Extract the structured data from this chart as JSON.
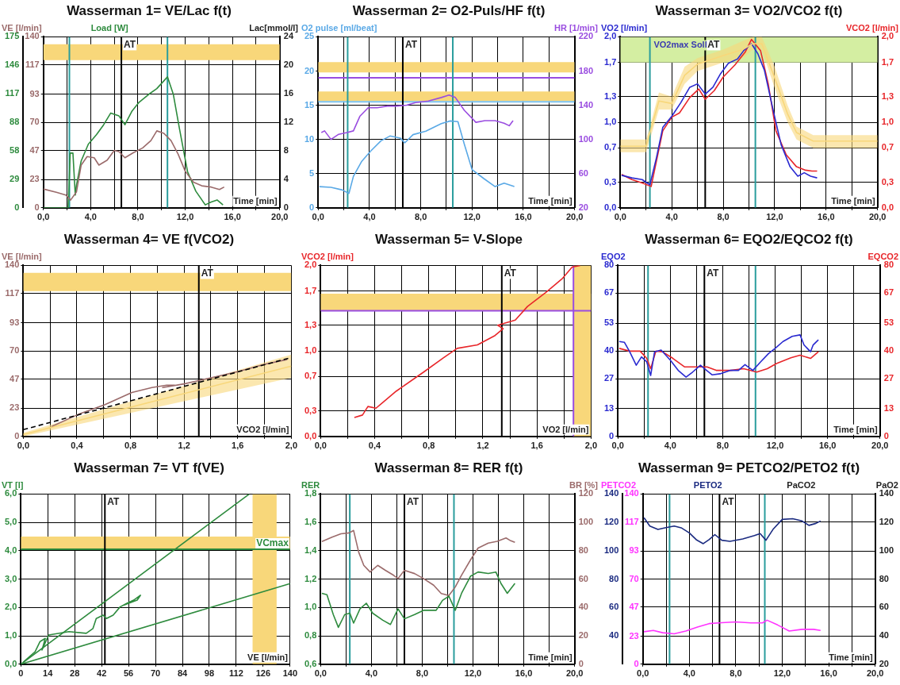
{
  "chart_data": [
    {
      "type": "line",
      "title": "Wasserman 1= VE/Lac f(t)",
      "xlabel": "Time [min]",
      "ylabel": "VE [l/min]",
      "y2label": "Lac[mmol/l]",
      "y3label": "Load [W]",
      "grid": true,
      "xlim": [
        0,
        20
      ],
      "xticks": [
        {
          "value": 0,
          "label": "0,0"
        },
        {
          "value": 2,
          "label": null
        },
        {
          "value": 4,
          "label": "4,0"
        },
        {
          "value": 6,
          "label": null
        },
        {
          "value": 8,
          "label": "8,0"
        },
        {
          "value": 10,
          "label": null
        },
        {
          "value": 12,
          "label": "12,0"
        },
        {
          "value": 14,
          "label": null
        },
        {
          "value": 16,
          "label": "16,0"
        },
        {
          "value": 18,
          "label": null
        },
        {
          "value": 20,
          "label": "20,0"
        }
      ],
      "ylim": [
        0,
        140
      ],
      "yticks": [
        0,
        23,
        47,
        70,
        93,
        117,
        140
      ],
      "y2lim": [
        0,
        24
      ],
      "y2ticks": [
        0,
        4,
        8,
        12,
        16,
        20,
        24
      ],
      "y3lim": [
        0,
        175
      ],
      "y3ticks": [
        0,
        29,
        58,
        88,
        117,
        146,
        175
      ],
      "series": [
        {
          "color": "#9b6b6b",
          "x": [
            0,
            1.1,
            1.9,
            2.3,
            2.8,
            3.2,
            3.7,
            4.3,
            4.7,
            5.4,
            6.0,
            6.4,
            6.9,
            7.6,
            8.4,
            9.1,
            9.6,
            10.2,
            10.8,
            11.4,
            12.0,
            12.7,
            13.4,
            14.2,
            14.9,
            15.3
          ],
          "values": [
            15.4,
            12.7,
            10.5,
            6.3,
            13,
            35,
            42,
            41,
            35,
            39,
            47,
            46,
            41,
            45,
            49,
            55,
            63,
            61,
            55,
            44,
            30,
            21,
            18,
            17,
            15,
            17
          ]
        },
        {
          "color": "#2e8b3e",
          "axis": "y3",
          "x": [
            0,
            1.3,
            2.1,
            2.27,
            2.5,
            2.7,
            2.8,
            3.2,
            3.8,
            4.5,
            5.1,
            5.7,
            6.4,
            6.9,
            7.5,
            8.1,
            8.9,
            9.6,
            10.5,
            11.0,
            11.5,
            12.2,
            12.9,
            13.7,
            14.2,
            14.7,
            15.2
          ],
          "values": [
            0,
            0,
            0,
            56,
            56,
            13,
            23,
            48,
            65,
            75,
            85,
            97,
            94,
            85,
            99,
            108,
            116,
            122,
            134,
            116,
            82,
            37,
            17,
            3,
            6,
            8,
            3
          ]
        }
      ],
      "bands": [
        {
          "axis": "y",
          "from": 121,
          "to": 134,
          "color": "#f8d77a"
        }
      ],
      "ref_lines": [
        {
          "axis": "x",
          "value": 2.2,
          "color": "#2a9d9d"
        },
        {
          "axis": "x",
          "value": 10.5,
          "color": "#2a9d9d"
        },
        {
          "axis": "x",
          "value": 6.6,
          "color": "#000000",
          "label": "AT"
        }
      ]
    },
    {
      "type": "line",
      "title": "Wasserman 2= O2-Puls/HF f(t)",
      "xlabel": "Time [min]",
      "ylabel": "O2 pulse [ml/beat]",
      "y2label": "HR [1/min]",
      "grid": true,
      "xlim": [
        0,
        20
      ],
      "xticks": [
        {
          "value": 0,
          "label": "0,0"
        },
        {
          "value": 2,
          "label": null
        },
        {
          "value": 4,
          "label": "4,0"
        },
        {
          "value": 6,
          "label": null
        },
        {
          "value": 8,
          "label": "8,0"
        },
        {
          "value": 10,
          "label": null
        },
        {
          "value": 12,
          "label": "12,0"
        },
        {
          "value": 14,
          "label": null
        },
        {
          "value": 16,
          "label": "16,0"
        },
        {
          "value": 18,
          "label": null
        },
        {
          "value": 20,
          "label": "20,0"
        }
      ],
      "ylim": [
        0,
        25
      ],
      "yticks": [
        0,
        5,
        10,
        15,
        20,
        25
      ],
      "y2lim": [
        20,
        220
      ],
      "y2ticks": [
        20,
        60,
        100,
        140,
        180,
        220
      ],
      "series": [
        {
          "color": "#5aa9e6",
          "x": [
            0.1,
            1.0,
            1.9,
            2.4,
            2.75,
            3.4,
            4.1,
            4.9,
            5.6,
            6.4,
            6.75,
            7.4,
            8.4,
            9.6,
            10.3,
            10.9,
            11.4,
            12.0,
            12.9,
            13.8,
            14.5,
            15.3
          ],
          "values": [
            3.1,
            3.0,
            2.6,
            2.1,
            4.6,
            6.8,
            8.3,
            9.8,
            10.5,
            10.2,
            9.5,
            10.7,
            11.2,
            12.3,
            12.7,
            12.6,
            9.3,
            5.6,
            4.3,
            3.1,
            3.6,
            3.1
          ]
        },
        {
          "color": "#9a4de0",
          "axis": "y2",
          "x": [
            0.25,
            0.5,
            1.0,
            1.6,
            2.25,
            2.75,
            3.25,
            3.9,
            4.6,
            5.4,
            6.1,
            6.9,
            7.6,
            8.6,
            9.6,
            10.2,
            10.7,
            11.4,
            12.3,
            13.0,
            13.8,
            14.5,
            14.9,
            15.2
          ],
          "values": [
            108,
            110,
            100,
            106,
            108,
            110,
            127,
            137,
            137,
            139,
            139,
            140,
            143,
            145,
            149,
            152,
            149,
            134,
            120,
            122,
            122,
            119,
            116,
            122
          ]
        }
      ],
      "bands": [
        {
          "axis": "y",
          "from": 19.8,
          "to": 21.3,
          "color": "#f8d77a"
        },
        {
          "axis": "y",
          "from": 15.6,
          "to": 17.0,
          "color": "#f8d77a"
        }
      ],
      "ref_lines": [
        {
          "axis": "y",
          "value": 19,
          "color": "#9a4de0"
        },
        {
          "axis": "y",
          "value": 15.5,
          "color": "#7cc3f0"
        },
        {
          "axis": "x",
          "value": 2.3,
          "color": "#2a9d9d"
        },
        {
          "axis": "x",
          "value": 10.5,
          "color": "#2a9d9d"
        },
        {
          "axis": "x",
          "value": 6.6,
          "color": "#000000",
          "label": "AT"
        }
      ]
    },
    {
      "type": "line",
      "title": "Wasserman 3= VO2/VCO2 f(t)",
      "xlabel": "Time [min]",
      "ylabel": "VO2 [l/min]",
      "y2label": "VCO2 [l/min]",
      "grid": true,
      "xlim": [
        0,
        20
      ],
      "xticks": [
        {
          "value": 0,
          "label": "0,0"
        },
        {
          "value": 2,
          "label": null
        },
        {
          "value": 4,
          "label": "4,0"
        },
        {
          "value": 6,
          "label": null
        },
        {
          "value": 8,
          "label": "8,0"
        },
        {
          "value": 10,
          "label": null
        },
        {
          "value": 12,
          "label": "12,0"
        },
        {
          "value": 14,
          "label": null
        },
        {
          "value": 16,
          "label": "16,0"
        },
        {
          "value": 18,
          "label": null
        },
        {
          "value": 20,
          "label": "20,0"
        }
      ],
      "ylim": [
        0,
        2
      ],
      "yticks": [
        {
          "value": 0,
          "label": "0,0"
        },
        {
          "value": 0.3,
          "label": "0,3"
        },
        {
          "value": 0.7,
          "label": "0,7"
        },
        {
          "value": 1,
          "label": "1,0"
        },
        {
          "value": 1.3,
          "label": "1,3"
        },
        {
          "value": 1.7,
          "label": "1,7"
        },
        {
          "value": 2,
          "label": "2,0"
        }
      ],
      "y2lim": [
        0,
        2
      ],
      "y2ticks": [
        {
          "value": 0,
          "label": "0,0"
        },
        {
          "value": 0.3,
          "label": "0,3"
        },
        {
          "value": 0.7,
          "label": "0,7"
        },
        {
          "value": 1,
          "label": "1,0"
        },
        {
          "value": 1.3,
          "label": "1,3"
        },
        {
          "value": 1.7,
          "label": "1,7"
        },
        {
          "value": 2,
          "label": "2,0"
        }
      ],
      "series": [
        {
          "color": "#f8d77a",
          "x": [
            0,
            2.0,
            2.3,
            3.0,
            4.0,
            5.0,
            6.0,
            8.0,
            9.5,
            10.3,
            11.0,
            12.0,
            13.0,
            13.7,
            15,
            20
          ],
          "lower": [
            0.65,
            0.65,
            0.8,
            1.15,
            1.15,
            1.45,
            1.6,
            1.7,
            1.75,
            1.85,
            1.85,
            1.4,
            1.0,
            0.8,
            0.7,
            0.7
          ],
          "upper": [
            0.8,
            0.8,
            0.95,
            1.35,
            1.3,
            1.65,
            1.75,
            1.85,
            1.95,
            2.0,
            2.0,
            1.65,
            1.2,
            0.95,
            0.85,
            0.85
          ],
          "values": [
            0.72,
            0.72,
            0.88,
            1.25,
            1.22,
            1.55,
            1.68,
            1.78,
            1.85,
            1.92,
            1.92,
            1.52,
            1.1,
            0.88,
            0.78,
            0.78
          ]
        },
        {
          "color": "#2a2ad0",
          "x": [
            0.1,
            0.9,
            1.7,
            2.3,
            2.8,
            3.3,
            4.0,
            4.7,
            5.4,
            6.0,
            6.6,
            7.2,
            7.8,
            8.4,
            9.1,
            9.6,
            10.2,
            10.7,
            11.2,
            11.9,
            12.5,
            13.2,
            13.8,
            14.3,
            14.8,
            15.3
          ],
          "values": [
            0.38,
            0.35,
            0.33,
            0.27,
            0.58,
            0.94,
            1.07,
            1.23,
            1.41,
            1.45,
            1.33,
            1.41,
            1.57,
            1.69,
            1.74,
            1.84,
            1.92,
            1.8,
            1.61,
            1.13,
            0.74,
            0.48,
            0.37,
            0.41,
            0.37,
            0.35
          ]
        },
        {
          "color": "#e8262a",
          "axis": "y2",
          "x": [
            0.1,
            0.9,
            1.7,
            2.4,
            2.8,
            3.3,
            4.0,
            4.6,
            5.4,
            6.1,
            6.6,
            7.3,
            8.0,
            8.9,
            9.7,
            10.2,
            10.9,
            11.5,
            12.1,
            12.9,
            13.7,
            14.4,
            14.9,
            15.3
          ],
          "values": [
            0.39,
            0.33,
            0.29,
            0.25,
            0.54,
            0.9,
            1.06,
            1.11,
            1.29,
            1.39,
            1.27,
            1.37,
            1.53,
            1.67,
            1.82,
            1.97,
            1.84,
            1.45,
            0.9,
            0.62,
            0.48,
            0.44,
            0.43,
            0.43
          ]
        }
      ],
      "bands": [
        {
          "axis": "y",
          "from": 1.7,
          "to": 2.0,
          "color": "#d4eea2",
          "label": "VO2max Soll"
        }
      ],
      "ref_lines": [
        {
          "axis": "x",
          "value": 2.3,
          "color": "#2a9d9d"
        },
        {
          "axis": "x",
          "value": 10.5,
          "color": "#2a9d9d"
        },
        {
          "axis": "x",
          "value": 6.6,
          "color": "#000000",
          "label": "AT"
        }
      ]
    },
    {
      "type": "line",
      "title": "Wasserman 4= VE f(VCO2)",
      "xlabel": "VCO2 [l/min]",
      "ylabel": "VE [l/min]",
      "grid": true,
      "xlim": [
        0,
        2
      ],
      "xticks": [
        {
          "value": 0,
          "label": "0,0"
        },
        {
          "value": 0.2,
          "label": null
        },
        {
          "value": 0.4,
          "label": "0,4"
        },
        {
          "value": 0.6,
          "label": null
        },
        {
          "value": 0.8,
          "label": "0,8"
        },
        {
          "value": 1,
          "label": null
        },
        {
          "value": 1.2,
          "label": "1,2"
        },
        {
          "value": 1.4,
          "label": null
        },
        {
          "value": 1.6,
          "label": "1,6"
        },
        {
          "value": 1.8,
          "label": null
        },
        {
          "value": 2,
          "label": "2,0"
        }
      ],
      "ylim": [
        0,
        140
      ],
      "yticks": [
        0,
        23,
        47,
        70,
        93,
        117,
        140
      ],
      "series": [
        {
          "color": "#f8d77a",
          "x": [
            0,
            2.0
          ],
          "lower": [
            0,
            48
          ],
          "upper": [
            3,
            67
          ],
          "values": [
            1.5,
            57.5
          ]
        },
        {
          "color": "#000000",
          "line_style": "dashed",
          "x": [
            0,
            2.0
          ],
          "values": [
            5.5,
            64.6
          ]
        },
        {
          "color": "#9b6b6b",
          "x": [
            0.21,
            0.41,
            0.61,
            0.81,
            0.96,
            1.07,
            1.13,
            1.04,
            1.2,
            1.4,
            1.6,
            1.8,
            1.97
          ],
          "values": [
            8,
            18,
            26,
            36,
            40,
            42,
            42,
            40,
            43,
            48,
            53,
            59,
            63
          ]
        }
      ],
      "bands": [
        {
          "axis": "y",
          "from": 119,
          "to": 134,
          "color": "#f8d77a"
        }
      ],
      "ref_lines": [
        {
          "axis": "x",
          "value": 1.31,
          "color": "#000000",
          "label": "AT"
        }
      ]
    },
    {
      "type": "line",
      "title": "Wasserman 5= V-Slope",
      "xlabel": "VO2 [l/min]",
      "ylabel": "VCO2 [l/min]",
      "grid": true,
      "xlim": [
        0,
        2
      ],
      "xticks": [
        {
          "value": 0,
          "label": "0,0"
        },
        {
          "value": 0.2,
          "label": null
        },
        {
          "value": 0.4,
          "label": "0,4"
        },
        {
          "value": 0.6,
          "label": null
        },
        {
          "value": 0.8,
          "label": "0,8"
        },
        {
          "value": 1,
          "label": null
        },
        {
          "value": 1.2,
          "label": "1,2"
        },
        {
          "value": 1.4,
          "label": null
        },
        {
          "value": 1.6,
          "label": "1,6"
        },
        {
          "value": 1.8,
          "label": null
        },
        {
          "value": 2,
          "label": "2,0"
        }
      ],
      "ylim": [
        0,
        2
      ],
      "yticks": [
        {
          "value": 0,
          "label": "0,0"
        },
        {
          "value": 0.3,
          "label": "0,3"
        },
        {
          "value": 0.7,
          "label": "0,7"
        },
        {
          "value": 1,
          "label": "1,0"
        },
        {
          "value": 1.3,
          "label": "1,3"
        },
        {
          "value": 1.7,
          "label": "1,7"
        },
        {
          "value": 2,
          "label": "2,0"
        }
      ],
      "series": [
        {
          "color": "#e8262a",
          "x": [
            0.25,
            0.31,
            0.35,
            0.41,
            0.56,
            0.76,
            0.91,
            1.01,
            1.16,
            1.29,
            1.35,
            1.31,
            1.44,
            1.53,
            1.67,
            1.79,
            1.86,
            1.92
          ],
          "values": [
            0.22,
            0.25,
            0.35,
            0.33,
            0.53,
            0.75,
            0.92,
            1.03,
            1.07,
            1.18,
            1.26,
            1.3,
            1.36,
            1.52,
            1.69,
            1.85,
            1.98,
            2.0
          ]
        }
      ],
      "bands": [
        {
          "axis": "y",
          "from": 1.47,
          "to": 1.67,
          "color": "#f8d77a"
        },
        {
          "axis": "x",
          "from": 1.87,
          "to": 2.0,
          "color": "#f8d77a"
        }
      ],
      "ref_lines": [
        {
          "axis": "y",
          "value": 1.47,
          "color": "#9a4de0"
        },
        {
          "axis": "x",
          "value": 1.87,
          "color": "#9a4de0"
        },
        {
          "axis": "x",
          "value": 1.34,
          "color": "#000000",
          "label": "AT"
        }
      ]
    },
    {
      "type": "line",
      "title": "Wasserman 6= EQO2/EQCO2 f(t)",
      "xlabel": "Time [min]",
      "ylabel": "EQO2",
      "y2label": "EQCO2",
      "grid": true,
      "xlim": [
        0,
        20
      ],
      "xticks": [
        {
          "value": 0,
          "label": "0,0"
        },
        {
          "value": 2,
          "label": null
        },
        {
          "value": 4,
          "label": "4,0"
        },
        {
          "value": 6,
          "label": null
        },
        {
          "value": 8,
          "label": "8,0"
        },
        {
          "value": 10,
          "label": null
        },
        {
          "value": 12,
          "label": "12,0"
        },
        {
          "value": 14,
          "label": null
        },
        {
          "value": 16,
          "label": "16,0"
        },
        {
          "value": 18,
          "label": null
        },
        {
          "value": 20,
          "label": "20,0"
        }
      ],
      "ylim": [
        0,
        80
      ],
      "yticks": [
        0,
        13,
        27,
        40,
        53,
        67,
        80
      ],
      "y2lim": [
        0,
        80
      ],
      "y2ticks": [
        0,
        13,
        27,
        40,
        53,
        67,
        80
      ],
      "series": [
        {
          "color": "#2a2ad0",
          "x": [
            0.1,
            0.5,
            0.9,
            1.4,
            1.8,
            2.2,
            2.5,
            2.8,
            3.3,
            4.0,
            4.6,
            5.2,
            5.7,
            6.3,
            6.6,
            7.2,
            7.8,
            8.6,
            9.2,
            9.7,
            10.3,
            10.9,
            11.5,
            12.0,
            12.6,
            13.3,
            13.9,
            14.2,
            14.7,
            14.9,
            15.3
          ],
          "values": [
            44.4,
            44,
            39.6,
            33.3,
            37.2,
            34.9,
            28.5,
            39.6,
            40.4,
            35.7,
            30.9,
            27.7,
            30.1,
            33.3,
            31.7,
            28.8,
            29.3,
            30.9,
            30.9,
            33.6,
            30.9,
            34.9,
            38.8,
            41.2,
            44.4,
            46.8,
            47.5,
            42.8,
            39.6,
            42.8,
            45.2
          ]
        },
        {
          "color": "#e8262a",
          "axis": "y2",
          "x": [
            0.1,
            0.9,
            1.7,
            2.2,
            2.5,
            2.9,
            3.4,
            4.2,
            5.1,
            6.0,
            6.8,
            7.5,
            8.6,
            9.6,
            10.6,
            11.4,
            12.1,
            13.2,
            13.9,
            14.7,
            15.3
          ],
          "values": [
            41.2,
            39.9,
            39.9,
            36.5,
            31.7,
            39.9,
            39.6,
            36.5,
            32.5,
            32.5,
            32.5,
            30.9,
            30.9,
            31.7,
            30.1,
            31.7,
            34.1,
            36.8,
            38,
            36.5,
            39.6
          ]
        }
      ],
      "ref_lines": [
        {
          "axis": "x",
          "value": 2.3,
          "color": "#2a9d9d"
        },
        {
          "axis": "x",
          "value": 10.5,
          "color": "#2a9d9d"
        },
        {
          "axis": "x",
          "value": 6.6,
          "color": "#000000",
          "label": "AT"
        }
      ]
    },
    {
      "type": "line",
      "title": "Wasserman 7= VT f(VE)",
      "xlabel": "VE [l/min]",
      "ylabel": "VT [l]",
      "grid": true,
      "xlim": [
        0,
        140
      ],
      "xticks": [
        0,
        14,
        28,
        42,
        56,
        70,
        84,
        98,
        112,
        126,
        140
      ],
      "ylim": [
        0,
        6
      ],
      "yticks": [
        {
          "value": 0,
          "label": "0,0"
        },
        {
          "value": 1,
          "label": "1,0"
        },
        {
          "value": 2,
          "label": "2,0"
        },
        {
          "value": 3,
          "label": "3,0"
        },
        {
          "value": 4,
          "label": "4,0"
        },
        {
          "value": 5,
          "label": "5,0"
        },
        {
          "value": 6,
          "label": "6,0"
        }
      ],
      "series": [
        {
          "color": "#2e8b3e",
          "x": [
            0,
            118.8
          ],
          "values": [
            0,
            6.0
          ]
        },
        {
          "color": "#2e8b3e",
          "x": [
            0,
            140
          ],
          "values": [
            0,
            2.84
          ]
        },
        {
          "color": "#2e8b3e",
          "x": [
            1.2,
            7.4,
            10,
            12.7,
            11,
            14.5,
            25,
            34,
            37.5,
            39.2,
            42.8,
            44.5,
            48,
            51.6,
            55,
            58.7,
            62.2,
            60.5,
            53.4
          ],
          "values": [
            0.07,
            0.44,
            0.8,
            0.91,
            0.5,
            1.03,
            1.15,
            1.09,
            1.26,
            1.61,
            1.73,
            1.61,
            1.73,
            2.02,
            2.14,
            2.26,
            2.43,
            2.26,
            2.08
          ]
        }
      ],
      "bands": [
        {
          "axis": "y",
          "from": 4.05,
          "to": 4.5,
          "color": "#f8d77a"
        },
        {
          "axis": "x",
          "from": 120.5,
          "to": 133,
          "color": "#f8d77a"
        }
      ],
      "ref_lines": [
        {
          "axis": "y",
          "value": 4.05,
          "color": "#2e8b3e",
          "label": "VCmax"
        },
        {
          "axis": "x",
          "value": 43.7,
          "color": "#000000",
          "label": "AT"
        }
      ]
    },
    {
      "type": "line",
      "title": "Wasserman 8= RER f(t)",
      "xlabel": "Time [min]",
      "ylabel": "RER",
      "y2label": "BR [%]",
      "grid": true,
      "xlim": [
        0,
        20
      ],
      "xticks": [
        {
          "value": 0,
          "label": "0,0"
        },
        {
          "value": 2,
          "label": null
        },
        {
          "value": 4,
          "label": "4,0"
        },
        {
          "value": 6,
          "label": null
        },
        {
          "value": 8,
          "label": "8,0"
        },
        {
          "value": 10,
          "label": null
        },
        {
          "value": 12,
          "label": "12,0"
        },
        {
          "value": 14,
          "label": null
        },
        {
          "value": 16,
          "label": "16,0"
        },
        {
          "value": 18,
          "label": null
        },
        {
          "value": 20,
          "label": "20,0"
        }
      ],
      "ylim": [
        0.6,
        1.8
      ],
      "yticks": [
        {
          "value": 0.6,
          "label": "0,6"
        },
        {
          "value": 0.8,
          "label": "0,8"
        },
        {
          "value": 1,
          "label": "1,0"
        },
        {
          "value": 1.2,
          "label": "1,2"
        },
        {
          "value": 1.4,
          "label": "1,4"
        },
        {
          "value": 1.6,
          "label": "1,6"
        },
        {
          "value": 1.8,
          "label": "1,8"
        }
      ],
      "y2lim": [
        0,
        120
      ],
      "y2ticks": [
        0,
        20,
        40,
        60,
        80,
        100,
        120
      ],
      "series": [
        {
          "color": "#2e8b3e",
          "x": [
            0.1,
            0.5,
            1.0,
            1.4,
            1.9,
            2.3,
            2.6,
            3.1,
            3.6,
            4.1,
            4.9,
            5.5,
            6.1,
            6.6,
            7.4,
            8.1,
            9.1,
            9.6,
            10.1,
            10.6,
            11.1,
            11.8,
            12.4,
            13.2,
            13.8,
            14.2,
            14.7,
            15.3
          ],
          "values": [
            1.1,
            1.09,
            0.95,
            0.86,
            0.95,
            0.96,
            0.89,
            0.99,
            1.03,
            0.96,
            0.91,
            0.88,
            0.99,
            0.92,
            0.95,
            0.98,
            0.98,
            1.05,
            1.08,
            0.98,
            1.1,
            1.22,
            1.25,
            1.24,
            1.25,
            1.17,
            1.1,
            1.17
          ]
        },
        {
          "color": "#9b6b6b",
          "axis": "y2",
          "x": [
            0.1,
            0.9,
            1.6,
            2.25,
            2.6,
            3.0,
            3.4,
            3.9,
            4.5,
            5.1,
            5.75,
            6.1,
            6.6,
            7.4,
            8.1,
            8.9,
            9.5,
            10.1,
            10.6,
            11.1,
            11.8,
            12.4,
            13.2,
            13.9,
            14.6,
            14.9,
            15.3
          ],
          "values": [
            86.5,
            89.6,
            92,
            92.6,
            94.3,
            79,
            69.7,
            65,
            69.7,
            66.2,
            62.7,
            60.4,
            66.2,
            63.9,
            60.4,
            55.7,
            49.8,
            48.4,
            54.4,
            62.8,
            73.5,
            81.9,
            85.4,
            86.6,
            89,
            87.4,
            85.9
          ]
        }
      ],
      "ref_lines": [
        {
          "axis": "x",
          "value": 2.3,
          "color": "#2a9d9d"
        },
        {
          "axis": "x",
          "value": 10.5,
          "color": "#2a9d9d"
        },
        {
          "axis": "x",
          "value": 6.6,
          "color": "#000000",
          "label": "AT"
        }
      ]
    },
    {
      "type": "line",
      "title": "Wasserman 9= PETCO2/PETO2 f(t)",
      "xlabel": "Time [min]",
      "ylabel": "PETCO2",
      "y2label": "PaO2",
      "y3label": "PETO2",
      "grid": true,
      "xlim": [
        0,
        20
      ],
      "xticks": [
        {
          "value": 0,
          "label": "0,0"
        },
        {
          "value": 2,
          "label": null
        },
        {
          "value": 4,
          "label": "4,0"
        },
        {
          "value": 6,
          "label": null
        },
        {
          "value": 8,
          "label": "8,0"
        },
        {
          "value": 10,
          "label": null
        },
        {
          "value": 12,
          "label": "12,0"
        },
        {
          "value": 14,
          "label": null
        },
        {
          "value": 16,
          "label": "16,0"
        },
        {
          "value": 18,
          "label": null
        },
        {
          "value": 20,
          "label": "20,0"
        }
      ],
      "ylim": [
        0,
        140
      ],
      "yticks": [
        0,
        23,
        47,
        70,
        93,
        117,
        140
      ],
      "y2lim": [
        20,
        140
      ],
      "y2ticks": [
        20,
        40,
        60,
        80,
        100,
        120,
        140
      ],
      "y3lim": [
        20,
        140
      ],
      "y3ticks": [
        40,
        60,
        80,
        100,
        120,
        140
      ],
      "series": [
        {
          "color": "#ff33ff",
          "x": [
            0.1,
            0.9,
            1.7,
            2.7,
            3.7,
            4.7,
            5.7,
            6.8,
            8.0,
            9.3,
            10.3,
            10.7,
            11.6,
            12.6,
            13.7,
            14.7,
            15.3
          ],
          "values": [
            26.7,
            27.8,
            25.9,
            25,
            27.3,
            30.6,
            33.4,
            34.2,
            34.8,
            34,
            34,
            36.2,
            32.3,
            27.3,
            28.7,
            28.7,
            27.8
          ]
        },
        {
          "color": "#1a2a80",
          "axis": "y3",
          "x": [
            0.1,
            0.6,
            1.3,
            1.9,
            2.7,
            3.3,
            4.0,
            4.6,
            5.2,
            5.7,
            6.2,
            6.8,
            7.5,
            8.6,
            9.6,
            10.1,
            10.6,
            11.2,
            12.0,
            12.9,
            13.7,
            14.3,
            14.9,
            15.3
          ],
          "values": [
            123.3,
            117.4,
            115,
            116.2,
            117.4,
            116.2,
            112.6,
            107.8,
            105,
            107.8,
            111.4,
            107.4,
            106.6,
            108.3,
            110.7,
            112.1,
            107.4,
            115,
            122.1,
            122.6,
            121,
            117.9,
            119.3,
            121
          ]
        }
      ],
      "ref_lines": [
        {
          "axis": "x",
          "value": 2.3,
          "color": "#2a9d9d"
        },
        {
          "axis": "x",
          "value": 10.5,
          "color": "#2a9d9d"
        },
        {
          "axis": "x",
          "value": 6.6,
          "color": "#000000",
          "label": "AT"
        }
      ],
      "annotations": [
        "PaCO2"
      ]
    }
  ]
}
